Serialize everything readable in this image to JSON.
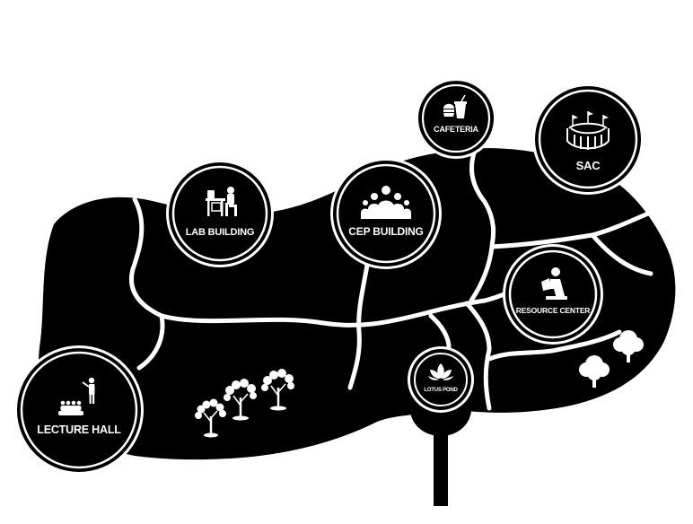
{
  "campus_map": {
    "colors": {
      "land": "#000000",
      "paths": "#ffffff",
      "markers": "#000000",
      "labels": "#ffffff"
    },
    "locations": {
      "lecture_hall": {
        "label": "LECTURE HALL",
        "icon": "lecture-icon"
      },
      "lab_building": {
        "label": "LAB BUILDING",
        "icon": "lab-icon"
      },
      "cep_building": {
        "label": "CEP BUILDING",
        "icon": "group-icon"
      },
      "cafeteria": {
        "label": "CAFETERIA",
        "icon": "food-icon"
      },
      "sac": {
        "label": "SAC",
        "icon": "stadium-icon"
      },
      "resource_center": {
        "label": "RESOURCE CENTER",
        "icon": "reading-icon"
      },
      "lotus_pond": {
        "label": "LOTUS POND",
        "icon": "lotus-icon"
      }
    },
    "decorations": [
      "tree-icon",
      "tree-icon",
      "tree-icon",
      "tree-icon",
      "tree-icon"
    ]
  }
}
